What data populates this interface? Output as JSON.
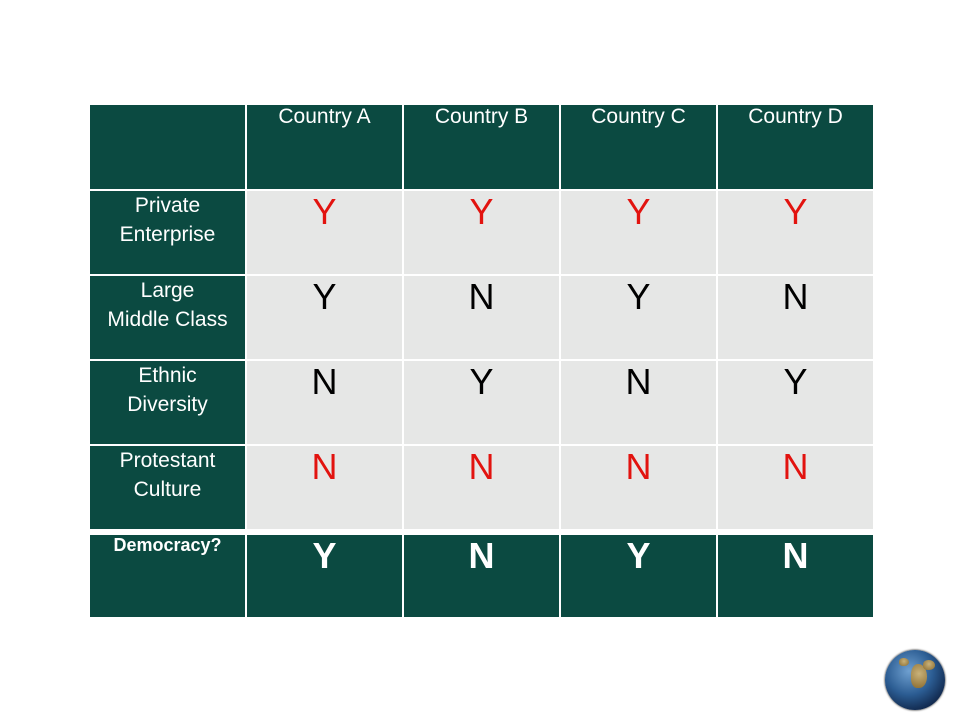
{
  "table": {
    "columns": [
      "Country A",
      "Country B",
      "Country C",
      "Country D"
    ],
    "rows": [
      {
        "label_line1": "Private",
        "label_line2": "Enterprise",
        "values": [
          "Y",
          "Y",
          "Y",
          "Y"
        ],
        "color": "#e2130f"
      },
      {
        "label_line1": "Large",
        "label_line2": "Middle Class",
        "values": [
          "Y",
          "N",
          "Y",
          "N"
        ],
        "color": "#000000"
      },
      {
        "label_line1": "Ethnic",
        "label_line2": "Diversity",
        "values": [
          "N",
          "Y",
          "N",
          "Y"
        ],
        "color": "#000000"
      },
      {
        "label_line1": "Protestant",
        "label_line2": "Culture",
        "values": [
          "N",
          "N",
          "N",
          "N"
        ],
        "color": "#e2130f"
      }
    ],
    "result": {
      "label": "Democracy?",
      "values": [
        "Y",
        "N",
        "Y",
        "N"
      ]
    }
  },
  "colors": {
    "header_bg": "#0b4a41",
    "cell_bg": "#e6e7e6",
    "highlight": "#e2130f"
  },
  "logo": {
    "icon": "globe-icon"
  }
}
